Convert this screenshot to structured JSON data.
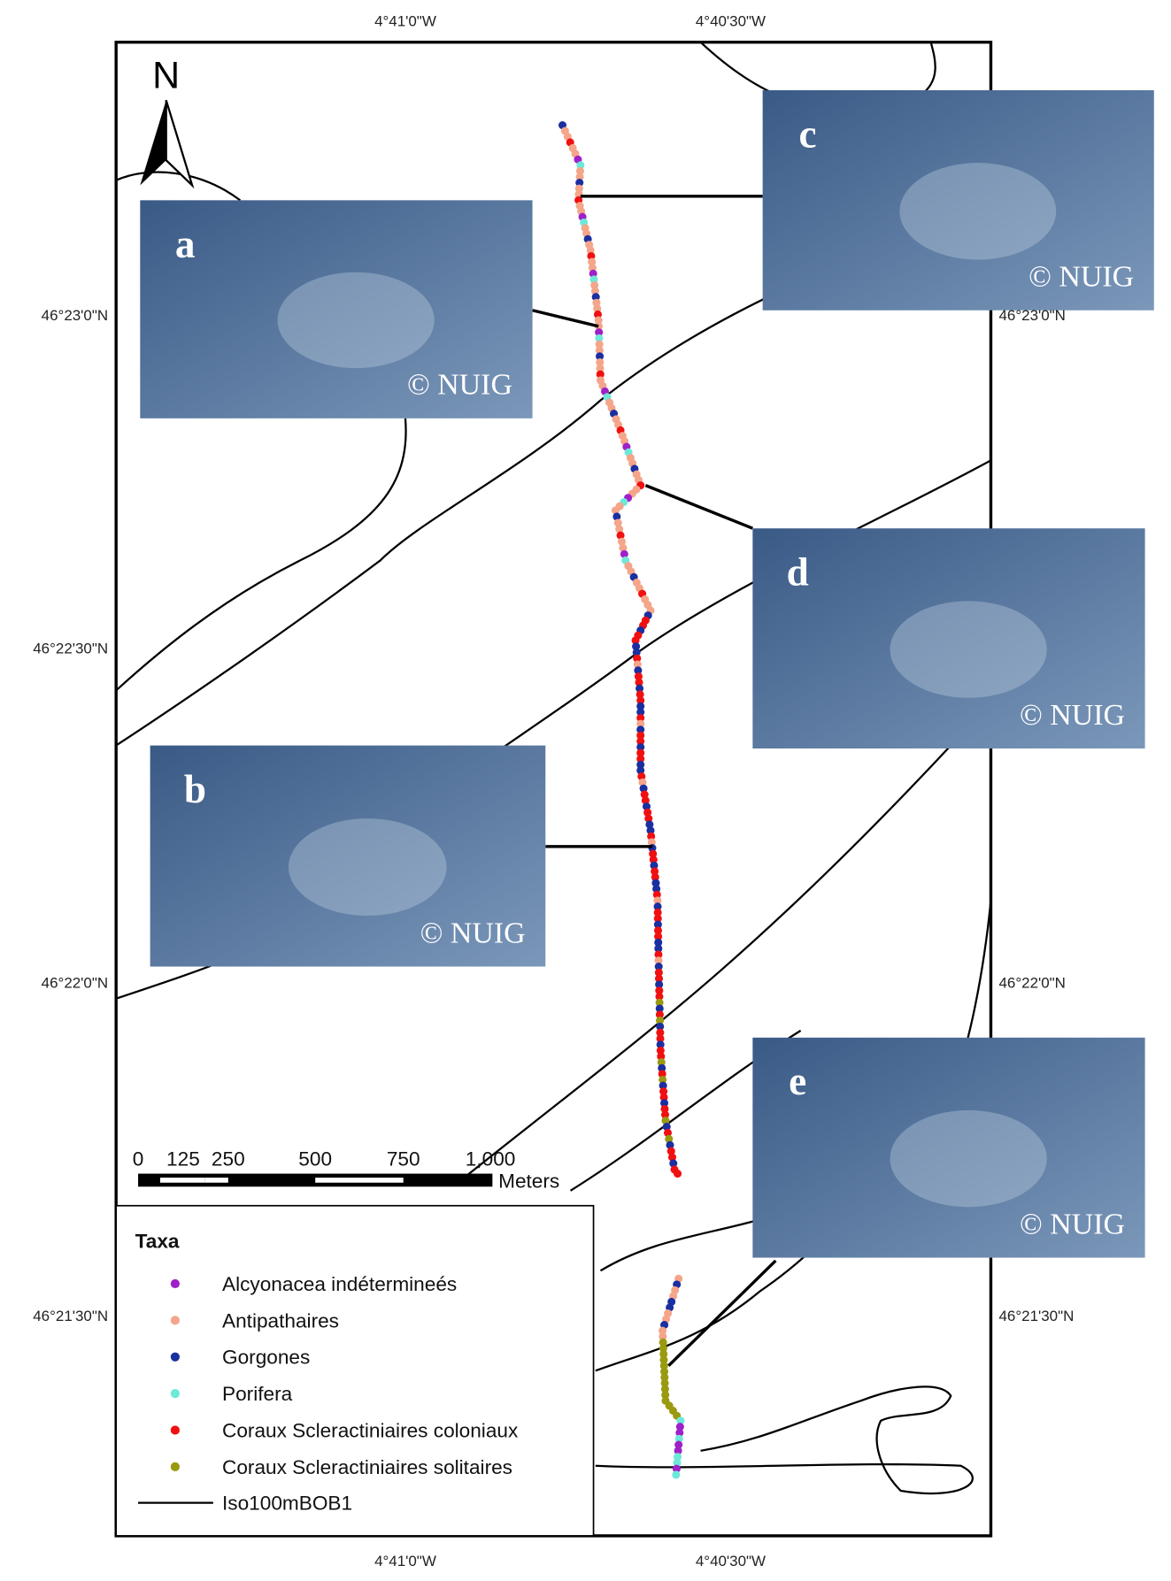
{
  "map": {
    "north": "N",
    "axes": {
      "top": [
        "4°41'0\"W",
        "4°40'30\"W"
      ],
      "bottom": [
        "4°41'0\"W",
        "4°40'30\"W"
      ],
      "left": [
        "46°23'0\"N",
        "46°22'30\"N",
        "46°22'0\"N",
        "46°21'30\"N"
      ],
      "right": [
        "46°23'0\"N",
        "46°22'0\"N",
        "46°21'30\"N"
      ]
    },
    "photos": [
      {
        "label": "a",
        "credit": "© NUIG"
      },
      {
        "label": "c",
        "credit": "© NUIG"
      },
      {
        "label": "d",
        "credit": "© NUIG"
      },
      {
        "label": "b",
        "credit": "© NUIG"
      },
      {
        "label": "e",
        "credit": "© NUIG"
      }
    ],
    "scale_bar": {
      "labels": [
        "0",
        "125",
        "250",
        "500",
        "750",
        "1,000"
      ],
      "unit": "Meters"
    },
    "legend": {
      "title": "Taxa",
      "items": [
        {
          "name": "Alcyonacea indétermineés",
          "color": "#a020c8"
        },
        {
          "name": "Antipathaires",
          "color": "#f4a58a"
        },
        {
          "name": "Gorgones",
          "color": "#1a2fa0"
        },
        {
          "name": "Porifera",
          "color": "#6ee8d8"
        },
        {
          "name": "Coraux Scleractiniaires coloniaux",
          "color": "#f01010"
        },
        {
          "name": "Coraux Scleractiniaires solitaires",
          "color": "#9a9a10"
        }
      ],
      "line": "Iso100mBOB1"
    }
  }
}
